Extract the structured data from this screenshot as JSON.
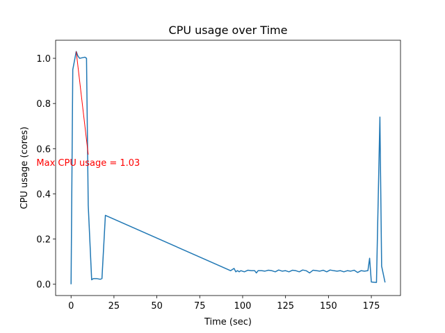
{
  "chart_data": {
    "type": "line",
    "title": "CPU usage over Time",
    "xlabel": "Time (sec)",
    "ylabel": "CPU usage (cores)",
    "x": [
      0,
      1,
      3,
      4,
      5,
      8,
      9,
      10,
      12,
      13,
      15,
      17,
      18,
      20,
      93,
      95,
      96,
      97,
      98,
      99,
      101,
      103,
      105,
      107,
      108,
      109,
      111,
      113,
      115,
      117,
      119,
      121,
      123,
      125,
      127,
      129,
      131,
      133,
      135,
      137,
      139,
      141,
      143,
      145,
      147,
      149,
      151,
      153,
      155,
      157,
      159,
      161,
      163,
      165,
      167,
      169,
      171,
      173,
      174,
      175,
      178,
      180,
      181,
      183
    ],
    "series": [
      {
        "name": "CPU usage",
        "color": "#1f77b4",
        "values": [
          0.0,
          0.95,
          1.03,
          1.01,
          1.0,
          1.005,
          1.0,
          0.35,
          0.02,
          0.025,
          0.025,
          0.022,
          0.025,
          0.305,
          0.06,
          0.07,
          0.055,
          0.06,
          0.055,
          0.06,
          0.055,
          0.062,
          0.06,
          0.06,
          0.05,
          0.06,
          0.06,
          0.058,
          0.062,
          0.06,
          0.055,
          0.063,
          0.058,
          0.06,
          0.055,
          0.062,
          0.06,
          0.055,
          0.063,
          0.06,
          0.05,
          0.062,
          0.06,
          0.058,
          0.062,
          0.055,
          0.063,
          0.06,
          0.058,
          0.06,
          0.055,
          0.06,
          0.058,
          0.062,
          0.052,
          0.06,
          0.058,
          0.06,
          0.115,
          0.01,
          0.008,
          0.74,
          0.08,
          0.008
        ]
      }
    ],
    "annotation": {
      "text": "Max CPU usage = 1.03",
      "xy": [
        3,
        1.03
      ],
      "xytext": [
        10,
        0.54
      ],
      "color": "#ff0000"
    },
    "xlim": [
      -9,
      192
    ],
    "ylim": [
      -0.05,
      1.08
    ],
    "xticks": [
      0,
      25,
      50,
      75,
      100,
      125,
      150,
      175
    ],
    "yticks": [
      {
        "value": 0,
        "label": "0.0"
      },
      0.2,
      0.4,
      0.6,
      0.8,
      {
        "value": 1,
        "label": "1.0"
      }
    ],
    "grid": false
  }
}
